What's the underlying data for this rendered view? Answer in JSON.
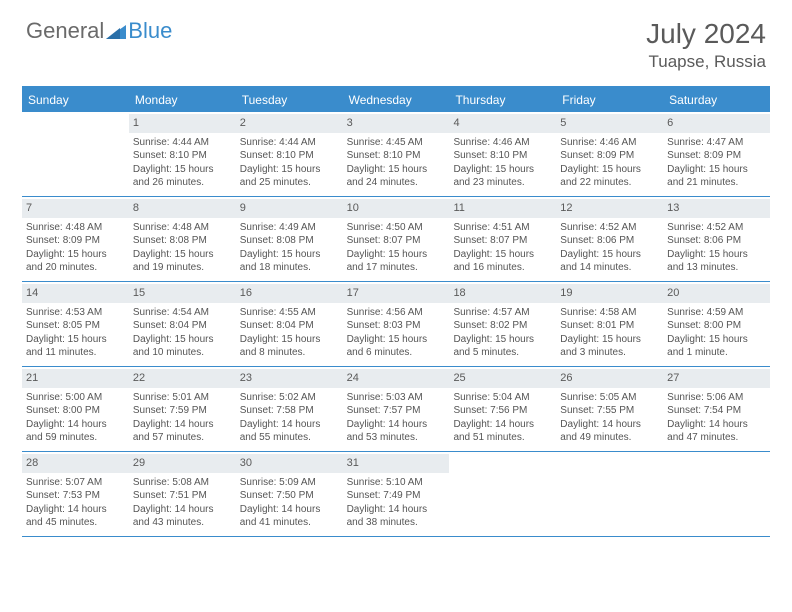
{
  "logo": {
    "general": "General",
    "blue": "Blue"
  },
  "title": {
    "month": "July 2024",
    "location": "Tuapse, Russia"
  },
  "colors": {
    "brand": "#3a8ccc",
    "header_text": "#ffffff",
    "daynum_bg": "#e8ecef",
    "text": "#555555"
  },
  "day_names": [
    "Sunday",
    "Monday",
    "Tuesday",
    "Wednesday",
    "Thursday",
    "Friday",
    "Saturday"
  ],
  "weeks": [
    [
      null,
      {
        "n": "1",
        "sr": "4:44 AM",
        "ss": "8:10 PM",
        "dl": "15 hours and 26 minutes."
      },
      {
        "n": "2",
        "sr": "4:44 AM",
        "ss": "8:10 PM",
        "dl": "15 hours and 25 minutes."
      },
      {
        "n": "3",
        "sr": "4:45 AM",
        "ss": "8:10 PM",
        "dl": "15 hours and 24 minutes."
      },
      {
        "n": "4",
        "sr": "4:46 AM",
        "ss": "8:10 PM",
        "dl": "15 hours and 23 minutes."
      },
      {
        "n": "5",
        "sr": "4:46 AM",
        "ss": "8:09 PM",
        "dl": "15 hours and 22 minutes."
      },
      {
        "n": "6",
        "sr": "4:47 AM",
        "ss": "8:09 PM",
        "dl": "15 hours and 21 minutes."
      }
    ],
    [
      {
        "n": "7",
        "sr": "4:48 AM",
        "ss": "8:09 PM",
        "dl": "15 hours and 20 minutes."
      },
      {
        "n": "8",
        "sr": "4:48 AM",
        "ss": "8:08 PM",
        "dl": "15 hours and 19 minutes."
      },
      {
        "n": "9",
        "sr": "4:49 AM",
        "ss": "8:08 PM",
        "dl": "15 hours and 18 minutes."
      },
      {
        "n": "10",
        "sr": "4:50 AM",
        "ss": "8:07 PM",
        "dl": "15 hours and 17 minutes."
      },
      {
        "n": "11",
        "sr": "4:51 AM",
        "ss": "8:07 PM",
        "dl": "15 hours and 16 minutes."
      },
      {
        "n": "12",
        "sr": "4:52 AM",
        "ss": "8:06 PM",
        "dl": "15 hours and 14 minutes."
      },
      {
        "n": "13",
        "sr": "4:52 AM",
        "ss": "8:06 PM",
        "dl": "15 hours and 13 minutes."
      }
    ],
    [
      {
        "n": "14",
        "sr": "4:53 AM",
        "ss": "8:05 PM",
        "dl": "15 hours and 11 minutes."
      },
      {
        "n": "15",
        "sr": "4:54 AM",
        "ss": "8:04 PM",
        "dl": "15 hours and 10 minutes."
      },
      {
        "n": "16",
        "sr": "4:55 AM",
        "ss": "8:04 PM",
        "dl": "15 hours and 8 minutes."
      },
      {
        "n": "17",
        "sr": "4:56 AM",
        "ss": "8:03 PM",
        "dl": "15 hours and 6 minutes."
      },
      {
        "n": "18",
        "sr": "4:57 AM",
        "ss": "8:02 PM",
        "dl": "15 hours and 5 minutes."
      },
      {
        "n": "19",
        "sr": "4:58 AM",
        "ss": "8:01 PM",
        "dl": "15 hours and 3 minutes."
      },
      {
        "n": "20",
        "sr": "4:59 AM",
        "ss": "8:00 PM",
        "dl": "15 hours and 1 minute."
      }
    ],
    [
      {
        "n": "21",
        "sr": "5:00 AM",
        "ss": "8:00 PM",
        "dl": "14 hours and 59 minutes."
      },
      {
        "n": "22",
        "sr": "5:01 AM",
        "ss": "7:59 PM",
        "dl": "14 hours and 57 minutes."
      },
      {
        "n": "23",
        "sr": "5:02 AM",
        "ss": "7:58 PM",
        "dl": "14 hours and 55 minutes."
      },
      {
        "n": "24",
        "sr": "5:03 AM",
        "ss": "7:57 PM",
        "dl": "14 hours and 53 minutes."
      },
      {
        "n": "25",
        "sr": "5:04 AM",
        "ss": "7:56 PM",
        "dl": "14 hours and 51 minutes."
      },
      {
        "n": "26",
        "sr": "5:05 AM",
        "ss": "7:55 PM",
        "dl": "14 hours and 49 minutes."
      },
      {
        "n": "27",
        "sr": "5:06 AM",
        "ss": "7:54 PM",
        "dl": "14 hours and 47 minutes."
      }
    ],
    [
      {
        "n": "28",
        "sr": "5:07 AM",
        "ss": "7:53 PM",
        "dl": "14 hours and 45 minutes."
      },
      {
        "n": "29",
        "sr": "5:08 AM",
        "ss": "7:51 PM",
        "dl": "14 hours and 43 minutes."
      },
      {
        "n": "30",
        "sr": "5:09 AM",
        "ss": "7:50 PM",
        "dl": "14 hours and 41 minutes."
      },
      {
        "n": "31",
        "sr": "5:10 AM",
        "ss": "7:49 PM",
        "dl": "14 hours and 38 minutes."
      },
      null,
      null,
      null
    ]
  ],
  "labels": {
    "sunrise": "Sunrise:",
    "sunset": "Sunset:",
    "daylight": "Daylight:"
  }
}
